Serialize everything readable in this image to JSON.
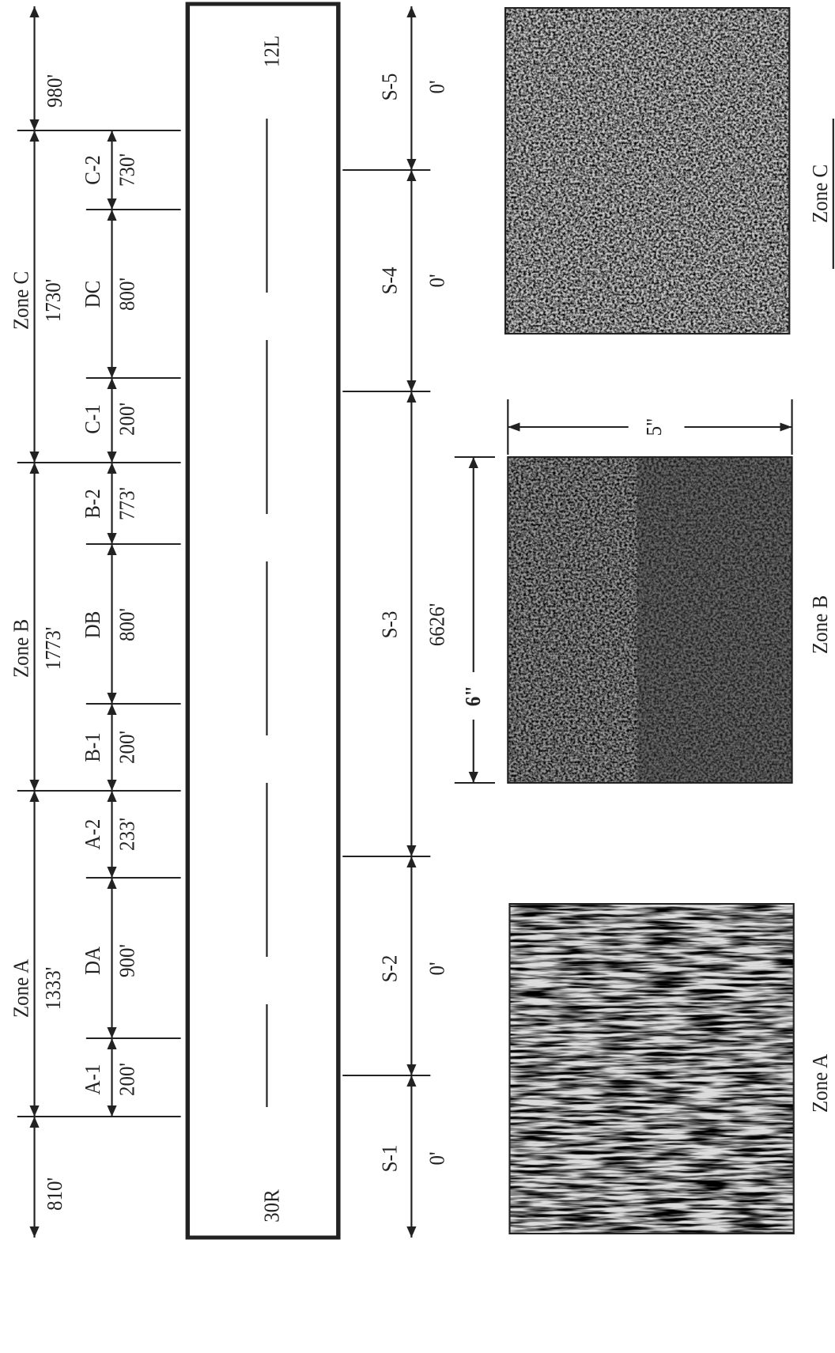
{
  "end_lengths": [
    "980'",
    "810'"
  ],
  "zones": [
    {
      "label": "Zone C",
      "length": "1730'"
    },
    {
      "label": "Zone B",
      "length": "1773'"
    },
    {
      "label": "Zone A",
      "length": "1333'"
    }
  ],
  "segments": [
    {
      "label": "C-2",
      "length": "730'"
    },
    {
      "label": "DC",
      "length": "800'"
    },
    {
      "label": "C-1",
      "length": "200'"
    },
    {
      "label": "B-2",
      "length": "773'"
    },
    {
      "label": "DB",
      "length": "800'"
    },
    {
      "label": "B-1",
      "length": "200'"
    },
    {
      "label": "A-2",
      "length": "233'"
    },
    {
      "label": "DA",
      "length": "900'"
    },
    {
      "label": "A-1",
      "length": "200'"
    }
  ],
  "runway": {
    "north_end": "12L",
    "south_end": "30R"
  },
  "sections": [
    {
      "label": "S-5",
      "length": "0'"
    },
    {
      "label": "S-4",
      "length": "0'"
    },
    {
      "label": "S-3",
      "length": "6626'"
    },
    {
      "label": "S-2",
      "length": "0'"
    },
    {
      "label": "S-1",
      "length": "0'"
    }
  ],
  "photos": [
    {
      "label": "Zone C"
    },
    {
      "label": "Zone B"
    },
    {
      "label": "Zone A"
    }
  ],
  "photo_dimensions": {
    "width": "5\"",
    "height": "6\""
  }
}
